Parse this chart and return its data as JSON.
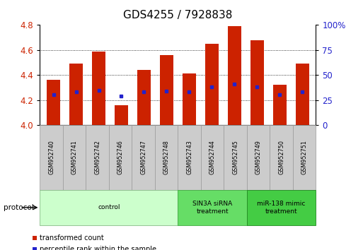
{
  "title": "GDS4255 / 7928838",
  "samples": [
    "GSM952740",
    "GSM952741",
    "GSM952742",
    "GSM952746",
    "GSM952747",
    "GSM952748",
    "GSM952743",
    "GSM952744",
    "GSM952745",
    "GSM952749",
    "GSM952750",
    "GSM952751"
  ],
  "bar_tops": [
    4.36,
    4.49,
    4.59,
    4.16,
    4.44,
    4.56,
    4.41,
    4.65,
    4.79,
    4.68,
    4.32,
    4.49
  ],
  "bar_bottom": 4.0,
  "percentile_values": [
    4.245,
    4.265,
    4.275,
    4.23,
    4.265,
    4.27,
    4.265,
    4.305,
    4.33,
    4.305,
    4.245,
    4.265
  ],
  "ylim": [
    4.0,
    4.8
  ],
  "right_ylim": [
    0,
    100
  ],
  "right_yticks": [
    0,
    25,
    50,
    75,
    100
  ],
  "right_yticklabels": [
    "0",
    "25",
    "50",
    "75",
    "100%"
  ],
  "left_yticks": [
    4.0,
    4.2,
    4.4,
    4.6,
    4.8
  ],
  "grid_lines": [
    4.2,
    4.4,
    4.6
  ],
  "bar_color": "#cc2200",
  "percentile_color": "#2222cc",
  "protocol_groups": [
    {
      "label": "control",
      "start": 0,
      "end": 5,
      "color": "#ccffcc",
      "edgecolor": "#88bb88"
    },
    {
      "label": "SIN3A siRNA\ntreatment",
      "start": 6,
      "end": 8,
      "color": "#66dd66",
      "edgecolor": "#44aa44"
    },
    {
      "label": "miR-138 mimic\ntreatment",
      "start": 9,
      "end": 11,
      "color": "#44cc44",
      "edgecolor": "#228822"
    }
  ],
  "legend_items": [
    {
      "label": "transformed count",
      "color": "#cc2200"
    },
    {
      "label": "percentile rank within the sample",
      "color": "#2222cc"
    }
  ],
  "protocol_label": "protocol",
  "title_fontsize": 11,
  "bar_width": 0.6,
  "sample_box_color": "#cccccc",
  "sample_box_edge": "#999999"
}
